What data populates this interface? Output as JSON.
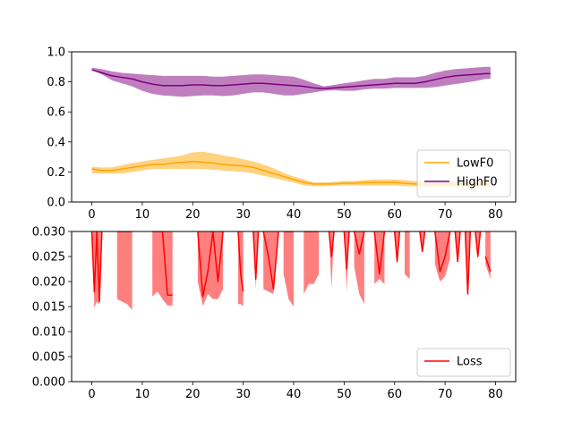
{
  "chart_data": [
    {
      "type": "line",
      "title": "",
      "xlabel": "",
      "ylabel": "",
      "xlim": [
        -4,
        84
      ],
      "ylim": [
        0,
        1.0
      ],
      "x_ticks": [
        0,
        10,
        20,
        30,
        40,
        50,
        60,
        70,
        80
      ],
      "y_ticks": [
        0.0,
        0.2,
        0.4,
        0.6,
        0.8,
        1.0
      ],
      "x_tick_labels": [
        "0",
        "10",
        "20",
        "30",
        "40",
        "50",
        "60",
        "70",
        "80"
      ],
      "y_tick_labels": [
        "0.0",
        "0.2",
        "0.4",
        "0.6",
        "0.8",
        "1.0"
      ],
      "legend_position": "lower-right",
      "grid": false,
      "series": [
        {
          "name": "LowF0",
          "color": "#ffa500",
          "band_alpha": 0.5,
          "x": [
            0,
            2,
            4,
            6,
            8,
            10,
            12,
            14,
            16,
            18,
            20,
            22,
            24,
            26,
            28,
            30,
            32,
            34,
            36,
            38,
            40,
            42,
            44,
            46,
            48,
            50,
            52,
            54,
            56,
            58,
            60,
            62,
            64,
            66,
            68,
            70,
            72,
            74,
            76,
            78,
            79
          ],
          "mean": [
            0.22,
            0.21,
            0.21,
            0.22,
            0.23,
            0.24,
            0.25,
            0.25,
            0.26,
            0.265,
            0.27,
            0.265,
            0.26,
            0.25,
            0.245,
            0.24,
            0.23,
            0.21,
            0.19,
            0.17,
            0.15,
            0.13,
            0.12,
            0.12,
            0.12,
            0.125,
            0.125,
            0.13,
            0.13,
            0.13,
            0.13,
            0.125,
            0.12,
            0.12,
            0.12,
            0.12,
            0.12,
            0.12,
            0.12,
            0.12,
            0.12
          ],
          "lower": [
            0.19,
            0.19,
            0.19,
            0.19,
            0.2,
            0.21,
            0.22,
            0.22,
            0.22,
            0.22,
            0.22,
            0.22,
            0.215,
            0.21,
            0.205,
            0.2,
            0.19,
            0.175,
            0.16,
            0.145,
            0.13,
            0.11,
            0.105,
            0.105,
            0.11,
            0.11,
            0.11,
            0.11,
            0.11,
            0.11,
            0.11,
            0.105,
            0.105,
            0.1,
            0.1,
            0.1,
            0.1,
            0.1,
            0.1,
            0.1,
            0.1
          ],
          "upper": [
            0.235,
            0.23,
            0.23,
            0.245,
            0.26,
            0.27,
            0.28,
            0.29,
            0.3,
            0.31,
            0.33,
            0.335,
            0.325,
            0.31,
            0.3,
            0.285,
            0.27,
            0.25,
            0.225,
            0.195,
            0.17,
            0.15,
            0.13,
            0.13,
            0.135,
            0.14,
            0.14,
            0.145,
            0.15,
            0.15,
            0.15,
            0.145,
            0.14,
            0.14,
            0.14,
            0.14,
            0.14,
            0.14,
            0.14,
            0.14,
            0.14
          ]
        },
        {
          "name": "HighF0",
          "color": "#800080",
          "band_alpha": 0.5,
          "x": [
            0,
            2,
            4,
            6,
            8,
            10,
            12,
            14,
            16,
            18,
            20,
            22,
            24,
            26,
            28,
            30,
            32,
            34,
            36,
            38,
            40,
            42,
            44,
            46,
            48,
            50,
            52,
            54,
            56,
            58,
            60,
            62,
            64,
            66,
            68,
            70,
            72,
            74,
            76,
            78,
            79
          ],
          "mean": [
            0.88,
            0.86,
            0.84,
            0.83,
            0.82,
            0.8,
            0.785,
            0.775,
            0.775,
            0.775,
            0.78,
            0.78,
            0.775,
            0.775,
            0.78,
            0.785,
            0.79,
            0.79,
            0.785,
            0.78,
            0.775,
            0.77,
            0.76,
            0.755,
            0.76,
            0.765,
            0.77,
            0.775,
            0.78,
            0.785,
            0.79,
            0.79,
            0.79,
            0.8,
            0.815,
            0.83,
            0.84,
            0.845,
            0.85,
            0.855,
            0.855
          ],
          "lower": [
            0.88,
            0.85,
            0.81,
            0.79,
            0.77,
            0.74,
            0.72,
            0.71,
            0.705,
            0.7,
            0.705,
            0.71,
            0.71,
            0.705,
            0.71,
            0.72,
            0.73,
            0.73,
            0.72,
            0.71,
            0.71,
            0.72,
            0.73,
            0.74,
            0.745,
            0.74,
            0.74,
            0.75,
            0.755,
            0.755,
            0.76,
            0.76,
            0.76,
            0.76,
            0.765,
            0.775,
            0.785,
            0.795,
            0.805,
            0.82,
            0.82
          ],
          "upper": [
            0.895,
            0.885,
            0.87,
            0.86,
            0.855,
            0.85,
            0.845,
            0.84,
            0.84,
            0.84,
            0.84,
            0.84,
            0.835,
            0.835,
            0.84,
            0.845,
            0.85,
            0.85,
            0.845,
            0.84,
            0.835,
            0.815,
            0.79,
            0.77,
            0.78,
            0.79,
            0.8,
            0.81,
            0.82,
            0.82,
            0.83,
            0.83,
            0.83,
            0.84,
            0.86,
            0.875,
            0.885,
            0.89,
            0.895,
            0.9,
            0.9
          ]
        }
      ]
    },
    {
      "type": "line",
      "title": "",
      "xlabel": "",
      "ylabel": "",
      "xlim": [
        -4,
        84
      ],
      "ylim": [
        0,
        0.03
      ],
      "x_ticks": [
        0,
        10,
        20,
        30,
        40,
        50,
        60,
        70,
        80
      ],
      "y_ticks": [
        0.0,
        0.005,
        0.01,
        0.015,
        0.02,
        0.025,
        0.03
      ],
      "x_tick_labels": [
        "0",
        "10",
        "20",
        "30",
        "40",
        "50",
        "60",
        "70",
        "80"
      ],
      "y_tick_labels": [
        "0.000",
        "0.005",
        "0.010",
        "0.015",
        "0.020",
        "0.025",
        "0.030"
      ],
      "legend_position": "lower-right",
      "grid": false,
      "series": [
        {
          "name": "Loss",
          "color": "#ff0000",
          "band_alpha": 0.5,
          "segments": [
            {
              "x": [
                0,
                0.5,
                1,
                1.5,
                2
              ],
              "mean": [
                0.03,
                0.018,
                0.03,
                0.016,
                0.03
              ],
              "lower": [
                0.03,
                0.0147,
                0.016,
                0.0155,
                0.03
              ]
            },
            {
              "x": [
                5,
                6,
                7,
                8
              ],
              "mean": [
                0.03,
                0.03,
                0.03,
                0.03
              ],
              "lower": [
                0.0165,
                0.016,
                0.0155,
                0.0143
              ]
            },
            {
              "x": [
                12,
                13,
                14,
                15,
                16
              ],
              "mean": [
                0.03,
                0.03,
                0.03,
                0.0173,
                0.0173
              ],
              "lower": [
                0.017,
                0.018,
                0.0165,
                0.0152,
                0.0152
              ]
            },
            {
              "x": [
                21,
                22,
                23,
                24,
                25,
                26
              ],
              "mean": [
                0.03,
                0.017,
                0.022,
                0.03,
                0.02,
                0.03
              ],
              "lower": [
                0.02,
                0.0151,
                0.0175,
                0.0165,
                0.0165,
                0.0185
              ]
            },
            {
              "x": [
                29,
                29.5,
                30
              ],
              "mean": [
                0.03,
                0.0215,
                0.018
              ],
              "lower": [
                0.0155,
                0.0155,
                0.015
              ]
            },
            {
              "x": [
                32,
                32.5,
                33
              ],
              "mean": [
                0.03,
                0.0205,
                0.03
              ],
              "lower": [
                0.03,
                0.0185,
                0.03
              ]
            },
            {
              "x": [
                34,
                35,
                36,
                37
              ],
              "mean": [
                0.03,
                0.025,
                0.0185,
                0.03
              ],
              "lower": [
                0.0185,
                0.018,
                0.0175,
                0.03
              ]
            },
            {
              "x": [
                38,
                39,
                40
              ],
              "mean": [
                0.03,
                0.03,
                0.03
              ],
              "lower": [
                0.0215,
                0.0165,
                0.015
              ]
            },
            {
              "x": [
                42,
                43,
                44,
                45
              ],
              "mean": [
                0.03,
                0.03,
                0.03,
                0.03
              ],
              "lower": [
                0.0175,
                0.0195,
                0.0195,
                0.0215
              ]
            },
            {
              "x": [
                47,
                47.5,
                48
              ],
              "mean": [
                0.03,
                0.025,
                0.03
              ],
              "lower": [
                0.03,
                0.0185,
                0.03
              ]
            },
            {
              "x": [
                50,
                50.5,
                51
              ],
              "mean": [
                0.03,
                0.0225,
                0.03
              ],
              "lower": [
                0.03,
                0.018,
                0.03
              ]
            },
            {
              "x": [
                52,
                53,
                54
              ],
              "mean": [
                0.03,
                0.0255,
                0.03
              ],
              "lower": [
                0.023,
                0.0175,
                0.0155
              ]
            },
            {
              "x": [
                56,
                57,
                58
              ],
              "mean": [
                0.03,
                0.0215,
                0.03
              ],
              "lower": [
                0.0195,
                0.0205,
                0.0195
              ]
            },
            {
              "x": [
                60,
                60.5,
                61
              ],
              "mean": [
                0.03,
                0.024,
                0.03
              ],
              "lower": [
                0.03,
                0.0235,
                0.03
              ]
            },
            {
              "x": [
                62,
                63
              ],
              "mean": [
                0.03,
                0.03
              ],
              "lower": [
                0.0215,
                0.0205
              ]
            },
            {
              "x": [
                65,
                65.5,
                66
              ],
              "mean": [
                0.03,
                0.026,
                0.03
              ],
              "lower": [
                0.03,
                0.026,
                0.03
              ]
            },
            {
              "x": [
                68,
                69,
                70,
                71
              ],
              "mean": [
                0.03,
                0.022,
                0.025,
                0.03
              ],
              "lower": [
                0.0235,
                0.02,
                0.021,
                0.0245
              ]
            },
            {
              "x": [
                72,
                72.5,
                73
              ],
              "mean": [
                0.03,
                0.024,
                0.03
              ],
              "lower": [
                0.03,
                0.024,
                0.03
              ]
            },
            {
              "x": [
                74,
                74.5,
                75
              ],
              "mean": [
                0.03,
                0.0175,
                0.03
              ],
              "lower": [
                0.03,
                0.0175,
                0.03
              ]
            },
            {
              "x": [
                76,
                76.5,
                77
              ],
              "mean": [
                0.03,
                0.025,
                0.03
              ],
              "lower": [
                0.03,
                0.025,
                0.03
              ]
            },
            {
              "x": [
                78,
                79
              ],
              "mean": [
                0.025,
                0.022
              ],
              "lower": [
                0.0235,
                0.0205
              ]
            }
          ]
        }
      ]
    }
  ]
}
